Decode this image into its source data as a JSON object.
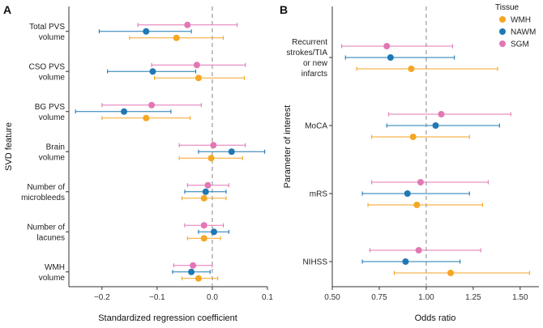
{
  "colors": {
    "WMH": "#f5a623",
    "NAWM": "#1f78b4",
    "SGM": "#e377b5",
    "refline": "#9a9a9a",
    "axis": "#333333"
  },
  "legend": {
    "title": "Tissue",
    "items": [
      "WMH",
      "NAWM",
      "SGM"
    ]
  },
  "chart_data": [
    {
      "panel": "A",
      "type": "forest",
      "xlabel": "Standardized regression coefficient",
      "ylabel": "SVD feature",
      "xlim": [
        -0.26,
        0.1
      ],
      "ref": 0,
      "xticks": [
        -0.2,
        -0.1,
        0.0,
        0.1
      ],
      "xtick_labels": [
        "−0.2",
        "−0.1",
        "0.0",
        "0.1"
      ],
      "categories": [
        {
          "label": [
            "Total PVS",
            "volume"
          ],
          "SGM": [
            -0.045,
            -0.135,
            0.045
          ],
          "NAWM": [
            -0.12,
            -0.205,
            -0.038
          ],
          "WMH": [
            -0.065,
            -0.15,
            0.02
          ]
        },
        {
          "label": [
            "CSO PVS",
            "volume"
          ],
          "SGM": [
            -0.028,
            -0.11,
            0.06
          ],
          "NAWM": [
            -0.108,
            -0.19,
            -0.03
          ],
          "WMH": [
            -0.025,
            -0.105,
            0.058
          ]
        },
        {
          "label": [
            "BG PVS",
            "volume"
          ],
          "SGM": [
            -0.11,
            -0.2,
            -0.02
          ],
          "NAWM": [
            -0.16,
            -0.248,
            -0.075
          ],
          "WMH": [
            -0.12,
            -0.2,
            -0.04
          ]
        },
        {
          "label": [
            "Brain",
            "volume"
          ],
          "SGM": [
            0.002,
            -0.06,
            0.06
          ],
          "NAWM": [
            0.035,
            -0.025,
            0.095
          ],
          "WMH": [
            -0.002,
            -0.06,
            0.055
          ]
        },
        {
          "label": [
            "Number of",
            "microbleeds"
          ],
          "SGM": [
            -0.008,
            -0.045,
            0.03
          ],
          "NAWM": [
            -0.012,
            -0.05,
            0.025
          ],
          "WMH": [
            -0.015,
            -0.055,
            0.025
          ]
        },
        {
          "label": [
            "Number of",
            "lacunes"
          ],
          "SGM": [
            -0.015,
            -0.05,
            0.02
          ],
          "NAWM": [
            0.003,
            -0.025,
            0.03
          ],
          "WMH": [
            -0.015,
            -0.045,
            0.015
          ]
        },
        {
          "label": [
            "WMH",
            "volume"
          ],
          "SGM": [
            -0.035,
            -0.07,
            0.0
          ],
          "NAWM": [
            -0.038,
            -0.072,
            -0.004
          ],
          "WMH": [
            -0.025,
            -0.055,
            0.01
          ]
        }
      ]
    },
    {
      "panel": "B",
      "type": "forest",
      "xlabel": "Odds ratio",
      "ylabel": "Parameter of interest",
      "xlim": [
        0.5,
        1.6
      ],
      "ref": 1,
      "xticks": [
        0.5,
        0.75,
        1.0,
        1.25,
        1.5
      ],
      "xtick_labels": [
        "0.50",
        "0.75",
        "1.00",
        "1.25",
        "1.50"
      ],
      "categories": [
        {
          "label": [
            "Recurrent",
            "strokes/TIA",
            "or new",
            "infarcts"
          ],
          "SGM": [
            0.79,
            0.55,
            1.14
          ],
          "NAWM": [
            0.81,
            0.57,
            1.15
          ],
          "WMH": [
            0.92,
            0.63,
            1.38
          ]
        },
        {
          "label": [
            "MoCA"
          ],
          "SGM": [
            1.08,
            0.8,
            1.45
          ],
          "NAWM": [
            1.05,
            0.79,
            1.39
          ],
          "WMH": [
            0.93,
            0.71,
            1.23
          ]
        },
        {
          "label": [
            "mRS"
          ],
          "SGM": [
            0.97,
            0.71,
            1.33
          ],
          "NAWM": [
            0.9,
            0.66,
            1.23
          ],
          "WMH": [
            0.95,
            0.69,
            1.3
          ]
        },
        {
          "label": [
            "NIHSS"
          ],
          "SGM": [
            0.96,
            0.7,
            1.29
          ],
          "NAWM": [
            0.89,
            0.66,
            1.18
          ],
          "WMH": [
            1.13,
            0.83,
            1.55
          ]
        }
      ]
    }
  ]
}
